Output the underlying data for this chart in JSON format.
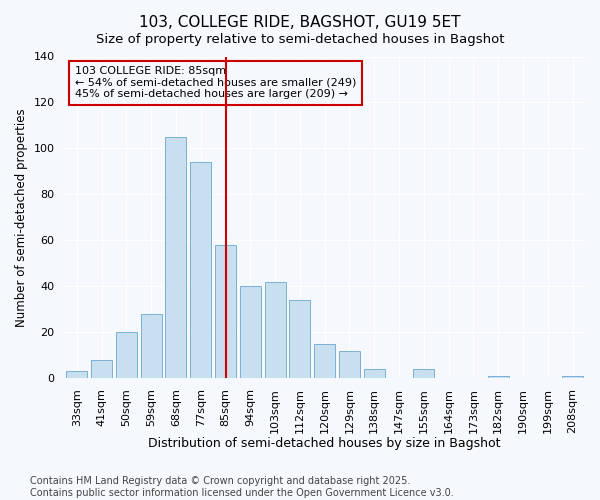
{
  "title": "103, COLLEGE RIDE, BAGSHOT, GU19 5ET",
  "subtitle": "Size of property relative to semi-detached houses in Bagshot",
  "xlabel": "Distribution of semi-detached houses by size in Bagshot",
  "ylabel": "Number of semi-detached properties",
  "categories": [
    "33sqm",
    "41sqm",
    "50sqm",
    "59sqm",
    "68sqm",
    "77sqm",
    "85sqm",
    "94sqm",
    "103sqm",
    "112sqm",
    "120sqm",
    "129sqm",
    "138sqm",
    "147sqm",
    "155sqm",
    "164sqm",
    "173sqm",
    "182sqm",
    "190sqm",
    "199sqm",
    "208sqm"
  ],
  "values": [
    3,
    8,
    20,
    28,
    105,
    94,
    58,
    40,
    42,
    34,
    15,
    12,
    4,
    0,
    4,
    0,
    0,
    1,
    0,
    0,
    1
  ],
  "bar_color": "#c8dff0",
  "bar_edge_color": "#7ab0d4",
  "subject_line_color": "#cc0000",
  "annotation_line1": "103 COLLEGE RIDE: 85sqm",
  "annotation_line2": "← 54% of semi-detached houses are smaller (249)",
  "annotation_line3": "45% of semi-detached houses are larger (209) →",
  "annotation_box_color": "#cc0000",
  "ylim": [
    0,
    140
  ],
  "yticks": [
    0,
    20,
    40,
    60,
    80,
    100,
    120,
    140
  ],
  "footer_line1": "Contains HM Land Registry data © Crown copyright and database right 2025.",
  "footer_line2": "Contains public sector information licensed under the Open Government Licence v3.0.",
  "background_color": "#f5f8fc",
  "grid_color": "#ffffff",
  "title_fontsize": 11,
  "subtitle_fontsize": 9.5,
  "xlabel_fontsize": 9,
  "ylabel_fontsize": 8.5,
  "tick_fontsize": 8,
  "annotation_fontsize": 8,
  "footer_fontsize": 7
}
